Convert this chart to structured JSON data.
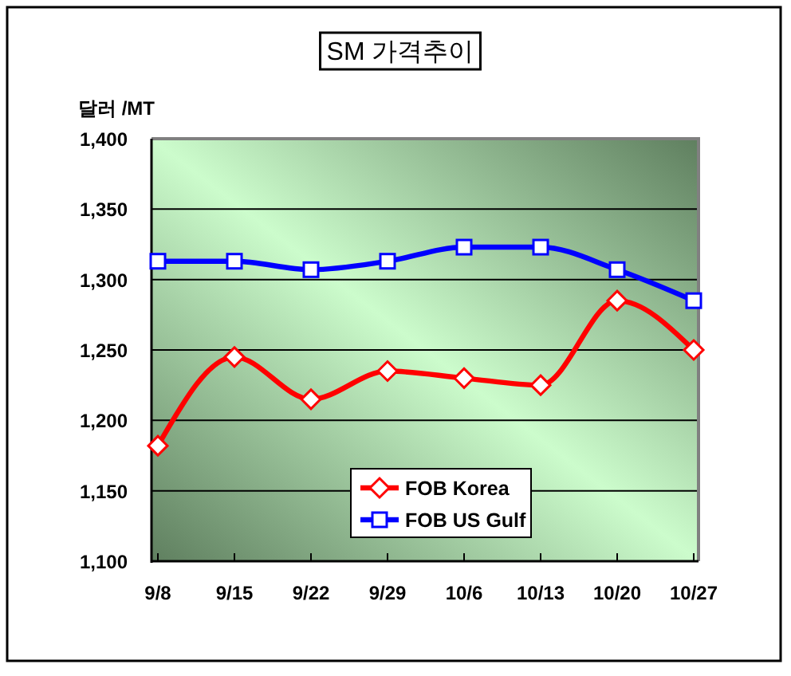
{
  "chart_data": {
    "type": "line",
    "title": "SM 가격추이",
    "ylabel": "달러 /MT",
    "categories": [
      "9/8",
      "9/15",
      "9/22",
      "9/29",
      "10/6",
      "10/13",
      "10/20",
      "10/27"
    ],
    "series": [
      {
        "name": "FOB Korea",
        "color": "#ff0000",
        "marker": "diamond",
        "values": [
          1182,
          1245,
          1215,
          1235,
          1230,
          1225,
          1285,
          1250
        ]
      },
      {
        "name": "FOB US Gulf",
        "color": "#0000ff",
        "marker": "square",
        "values": [
          1313,
          1313,
          1307,
          1313,
          1323,
          1323,
          1307,
          1285
        ]
      }
    ],
    "ylim": [
      1100,
      1400
    ],
    "yticks": [
      {
        "value": 1100,
        "label": "1,100"
      },
      {
        "value": 1150,
        "label": "1,150"
      },
      {
        "value": 1200,
        "label": "1,200"
      },
      {
        "value": 1250,
        "label": "1,250"
      },
      {
        "value": 1300,
        "label": "1,300"
      },
      {
        "value": 1350,
        "label": "1,350"
      },
      {
        "value": 1400,
        "label": "1,400"
      }
    ],
    "grid": "y",
    "legend": "bottom"
  }
}
